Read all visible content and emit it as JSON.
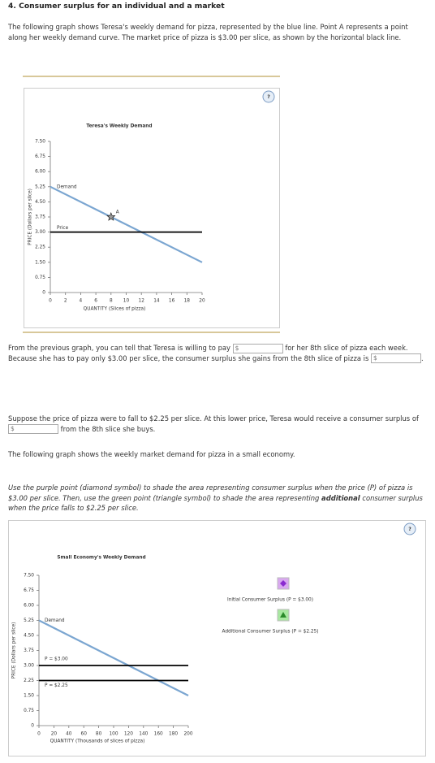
{
  "header": {
    "title": "4. Consumer surplus for an individual and a market"
  },
  "intro": "The following graph shows Teresa's weekly demand for pizza, represented by the blue line. Point A represents a point along her weekly demand curve. The market price of pizza is $3.00 per slice, as shown by the horizontal black line.",
  "chart_data": [
    {
      "type": "line",
      "title": "Teresa's Weekly Demand",
      "help": "?",
      "xlabel": "QUANTITY (Slices of pizza)",
      "ylabel": "PRICE (Dollars per slice)",
      "xlim": [
        0,
        20
      ],
      "ylim": [
        0,
        7.5
      ],
      "xticks": [
        0,
        2,
        4,
        6,
        8,
        10,
        12,
        14,
        16,
        18,
        20
      ],
      "yticks": [
        0,
        0.75,
        {
          "value": 1.5,
          "label": "1.50"
        },
        2.25,
        {
          "value": 3,
          "label": "3.00"
        },
        3.75,
        {
          "value": 4.5,
          "label": "4.50"
        },
        5.25,
        {
          "value": 6,
          "label": "6.00"
        },
        6.75,
        {
          "value": 7.5,
          "label": "7.50"
        }
      ],
      "series": [
        {
          "name": "Demand",
          "color": "#7ba6d1",
          "x": [
            0,
            20
          ],
          "values": [
            5.25,
            1.5
          ]
        },
        {
          "name": "Price",
          "color": "#000000",
          "x": [
            0,
            20
          ],
          "values": [
            3,
            3
          ]
        }
      ],
      "points": [
        {
          "label": "A",
          "x": 8,
          "y": 3.75
        }
      ]
    },
    {
      "type": "line",
      "title": "Small Economy's Weekly Demand",
      "help": "?",
      "xlabel": "QUANTITY (Thousands of slices of pizza)",
      "ylabel": "PRICE (Dollars per slice)",
      "xlim": [
        0,
        200
      ],
      "ylim": [
        0,
        7.5
      ],
      "xticks": [
        0,
        20,
        40,
        60,
        80,
        100,
        120,
        140,
        160,
        180,
        200
      ],
      "yticks": [
        0,
        0.75,
        {
          "value": 1.5,
          "label": "1.50"
        },
        2.25,
        {
          "value": 3,
          "label": "3.00"
        },
        3.75,
        {
          "value": 4.5,
          "label": "4.50"
        },
        5.25,
        {
          "value": 6,
          "label": "6.00"
        },
        6.75,
        {
          "value": 7.5,
          "label": "7.50"
        }
      ],
      "series": [
        {
          "name": "Demand",
          "color": "#7ba6d1",
          "x": [
            0,
            200
          ],
          "values": [
            5.25,
            1.5
          ]
        },
        {
          "name": "P = $3.00",
          "color": "#000000",
          "x": [
            0,
            200
          ],
          "values": [
            3,
            3
          ]
        },
        {
          "name": "P = $2.25",
          "color": "#000000",
          "x": [
            0,
            200
          ],
          "values": [
            2.25,
            2.25
          ]
        }
      ],
      "legend": {
        "items": [
          {
            "symbol": "diamond",
            "color": "#d9a8f0",
            "label": "Initial Consumer Surplus (P = $3.00)"
          },
          {
            "symbol": "triangle",
            "color": "#a8e8a0",
            "label": "Additional Consumer Surplus (P = $2.25)"
          }
        ]
      }
    }
  ],
  "question1": {
    "before": "From the previous graph, you can tell that Teresa is willing to pay",
    "input1": "$",
    "middle": "for her 8th slice of pizza each week. Because she has to pay only $3.00 per slice, the consumer surplus she gains from the 8th slice of pizza is",
    "input2": "$",
    "after": "."
  },
  "question2": {
    "before": "Suppose the price of pizza were to fall to $2.25 per slice. At this lower price, Teresa would receive a consumer surplus of",
    "input": "$",
    "after": "from the 8th slice she buys."
  },
  "market_intro": "The following graph shows the weekly market demand for pizza in a small economy.",
  "instructions": {
    "before": "Use the purple point (diamond symbol) to shade the area representing consumer surplus when the price (P) of pizza is $3.00 per slice. Then, use the green point (triangle symbol) to shade the area representing",
    "bold": "additional",
    "after": "consumer surplus when the price falls to $2.25 per slice."
  }
}
